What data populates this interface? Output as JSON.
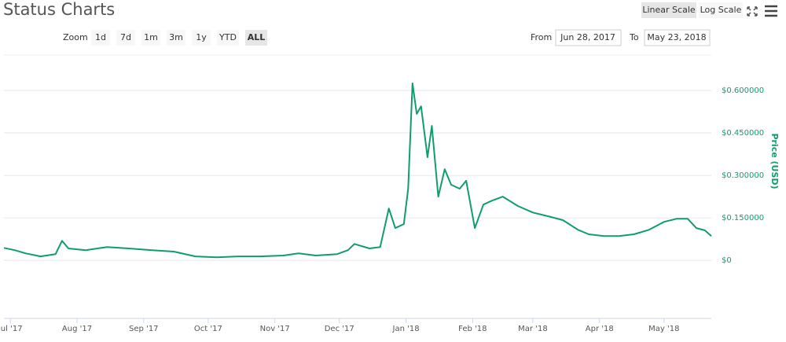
{
  "ui": {
    "zoom_label": "Zoom",
    "zoom_buttons": [
      "1d",
      "7d",
      "1m",
      "3m",
      "1y",
      "YTD",
      "ALL"
    ],
    "from_label": "From",
    "from_value": "Jun 28, 2017",
    "to_label": "To",
    "to_value": "May 23, 2018",
    "scale_buttons": [
      "Linear Scale",
      "Log Scale"
    ]
  },
  "chart_data": {
    "type": "line",
    "title": "Status Charts",
    "y_label": "Price (USD)",
    "color": "#109d6e",
    "x": [
      "2017-06-28",
      "2017-07-03",
      "2017-07-08",
      "2017-07-15",
      "2017-07-22",
      "2017-07-25",
      "2017-07-28",
      "2017-08-05",
      "2017-08-15",
      "2017-08-25",
      "2017-09-05",
      "2017-09-15",
      "2017-09-25",
      "2017-10-05",
      "2017-10-15",
      "2017-10-25",
      "2017-11-05",
      "2017-11-12",
      "2017-11-20",
      "2017-11-30",
      "2017-12-05",
      "2017-12-08",
      "2017-12-15",
      "2017-12-20",
      "2017-12-24",
      "2017-12-27",
      "2017-12-31",
      "2018-01-02",
      "2018-01-04",
      "2018-01-06",
      "2018-01-08",
      "2018-01-11",
      "2018-01-13",
      "2018-01-16",
      "2018-01-19",
      "2018-01-22",
      "2018-01-26",
      "2018-01-29",
      "2018-02-02",
      "2018-02-06",
      "2018-02-10",
      "2018-02-15",
      "2018-02-22",
      "2018-03-01",
      "2018-03-08",
      "2018-03-15",
      "2018-03-22",
      "2018-03-27",
      "2018-04-03",
      "2018-04-10",
      "2018-04-17",
      "2018-04-24",
      "2018-05-01",
      "2018-05-07",
      "2018-05-12",
      "2018-05-16",
      "2018-05-20",
      "2018-05-23"
    ],
    "values": [
      0.044,
      0.036,
      0.025,
      0.014,
      0.022,
      0.069,
      0.042,
      0.036,
      0.047,
      0.042,
      0.036,
      0.031,
      0.014,
      0.011,
      0.014,
      0.014,
      0.017,
      0.025,
      0.017,
      0.022,
      0.036,
      0.058,
      0.042,
      0.047,
      0.183,
      0.114,
      0.128,
      0.253,
      0.625,
      0.517,
      0.544,
      0.364,
      0.475,
      0.225,
      0.322,
      0.267,
      0.253,
      0.281,
      0.114,
      0.197,
      0.211,
      0.225,
      0.192,
      0.169,
      0.156,
      0.142,
      0.108,
      0.092,
      0.086,
      0.086,
      0.092,
      0.108,
      0.136,
      0.147,
      0.147,
      0.114,
      0.106,
      0.086
    ],
    "xlim": [
      "2017-06-28",
      "2018-05-23"
    ],
    "xticks": [
      {
        "value": "2017-07-01",
        "label": "Jul '17"
      },
      {
        "value": "2017-08-01",
        "label": "Aug '17"
      },
      {
        "value": "2017-09-01",
        "label": "Sep '17"
      },
      {
        "value": "2017-10-01",
        "label": "Oct '17"
      },
      {
        "value": "2017-11-01",
        "label": "Nov '17"
      },
      {
        "value": "2017-12-01",
        "label": "Dec '17"
      },
      {
        "value": "2018-01-01",
        "label": "Jan '18"
      },
      {
        "value": "2018-02-01",
        "label": "Feb '18"
      },
      {
        "value": "2018-03-01",
        "label": "Mar '18"
      },
      {
        "value": "2018-04-01",
        "label": "Apr '18"
      },
      {
        "value": "2018-05-01",
        "label": "May '18"
      }
    ],
    "ylim": [
      -0.205,
      0.725
    ],
    "yticks": [
      {
        "value": 0,
        "label": "$0"
      },
      {
        "value": 0.15,
        "label": "$0.150000"
      },
      {
        "value": 0.3,
        "label": "$0.300000"
      },
      {
        "value": 0.45,
        "label": "$0.450000"
      },
      {
        "value": 0.6,
        "label": "$0.600000"
      }
    ],
    "grid": true
  }
}
